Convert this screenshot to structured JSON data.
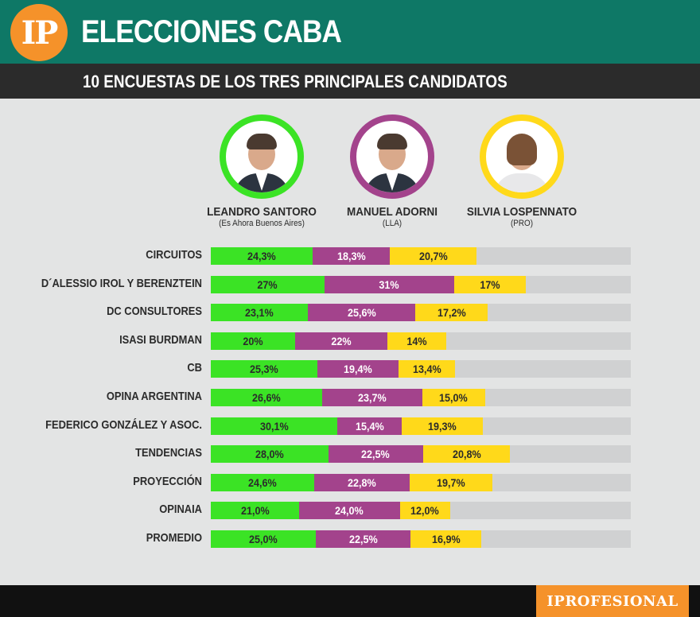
{
  "header": {
    "logo_text": "IP",
    "title": "ELECCIONES CABA",
    "subtitle": "10 ENCUESTAS DE LOS TRES PRINCIPALES CANDIDATOS"
  },
  "candidates": [
    {
      "name": "LEANDRO SANTORO",
      "party": "(Es Ahora Buenos Aires)",
      "color": "#3be325"
    },
    {
      "name": "MANUEL ADORNI",
      "party": "(LLA)",
      "color": "#a3438c"
    },
    {
      "name": "SILVIA LOSPENNATO",
      "party": "(PRO)",
      "color": "#ffd91a"
    }
  ],
  "chart_data": {
    "type": "bar",
    "stacked": true,
    "orientation": "horizontal",
    "categories": [
      "CIRCUITOS",
      "D´ALESSIO IROL Y BERENZTEIN",
      "DC CONSULTORES",
      "ISASI BURDMAN",
      "CB",
      "OPINA ARGENTINA",
      "FEDERICO GONZÁLEZ Y ASOC.",
      "TENDENCIAS",
      "PROYECCIÓN",
      "OPINAIA",
      "PROMEDIO"
    ],
    "xlim": [
      0,
      100
    ],
    "series": [
      {
        "name": "LEANDRO SANTORO",
        "values": [
          24.3,
          27,
          23.1,
          20,
          25.3,
          26.6,
          30.1,
          28.0,
          24.6,
          21.0,
          25.0
        ],
        "labels": [
          "24,3%",
          "27%",
          "23,1%",
          "20%",
          "25,3%",
          "26,6%",
          "30,1%",
          "28,0%",
          "24,6%",
          "21,0%",
          "25,0%"
        ]
      },
      {
        "name": "MANUEL ADORNI",
        "values": [
          18.3,
          31,
          25.6,
          22,
          19.4,
          23.7,
          15.4,
          22.5,
          22.8,
          24.0,
          22.5
        ],
        "labels": [
          "18,3%",
          "31%",
          "25,6%",
          "22%",
          "19,4%",
          "23,7%",
          "15,4%",
          "22,5%",
          "22,8%",
          "24,0%",
          "22,5%"
        ]
      },
      {
        "name": "SILVIA LOSPENNATO",
        "values": [
          20.7,
          17,
          17.2,
          14,
          13.4,
          15.0,
          19.3,
          20.8,
          19.7,
          12.0,
          16.9
        ],
        "labels": [
          "20,7%",
          "17%",
          "17,2%",
          "14%",
          "13,4%",
          "15,0%",
          "19,3%",
          "20,8%",
          "19,7%",
          "12,0%",
          "16,9%"
        ]
      }
    ]
  },
  "footer": {
    "brand": "IPROFESIONAL"
  }
}
